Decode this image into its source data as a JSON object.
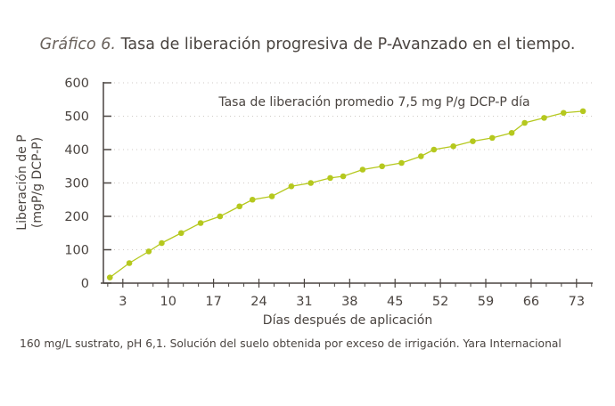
{
  "title_prefix": "Gráfico 6.",
  "title": "Tasa de liberación progresiva de P-Avanzado en el tiempo.",
  "source": "160 mg/L sustrato, pH 6,1. Solución del suelo obtenida por exceso de irrigación. Yara Internacional",
  "colors": {
    "series": "#b5c81e",
    "axis": "#4a4440",
    "grid": "#cfcac5"
  },
  "chart_data": {
    "type": "line",
    "title": "Tasa de liberación progresiva de P-Avanzado en el tiempo.",
    "xlabel": "Días después de aplicación",
    "ylabel": [
      "Liberación de P",
      "(mgP/g DCP-P)"
    ],
    "annotation": "Tasa de liberación promedio 7,5 mg P/g DCP-P día",
    "xlim": [
      0,
      75.5
    ],
    "ylim": [
      0,
      600
    ],
    "xticks": [
      3,
      10,
      17,
      24,
      31,
      38,
      45,
      52,
      59,
      66,
      73
    ],
    "yticks": [
      0,
      100,
      200,
      300,
      400,
      500,
      600
    ],
    "grid": "horizontal dotted",
    "x": [
      1,
      4,
      7,
      9,
      12,
      15,
      18,
      21,
      23,
      26,
      29,
      32,
      35,
      37,
      40,
      43,
      46,
      49,
      51,
      54,
      57,
      60,
      63,
      65,
      68,
      71,
      74
    ],
    "y": [
      17,
      60,
      95,
      120,
      150,
      180,
      200,
      230,
      250,
      260,
      290,
      300,
      315,
      320,
      340,
      350,
      360,
      380,
      400,
      410,
      425,
      435,
      450,
      480,
      495,
      510,
      515
    ]
  }
}
